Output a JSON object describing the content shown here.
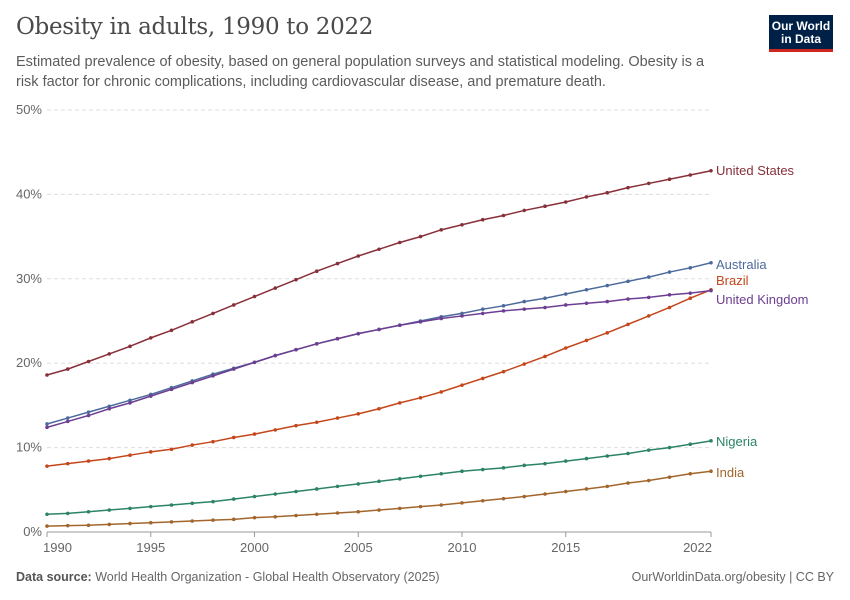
{
  "header": {
    "title": "Obesity in adults, 1990 to 2022",
    "subtitle": "Estimated prevalence of obesity, based on general population surveys and statistical modeling. Obesity is a risk factor for chronic complications, including cardiovascular disease, and premature death.",
    "logo": "Our World in Data"
  },
  "footer": {
    "source_label": "Data source:",
    "source": "World Health Organization - Global Health Observatory (2025)",
    "license": "OurWorldinData.org/obesity | CC BY"
  },
  "chart_data": {
    "type": "line",
    "title": "Obesity in adults, 1990 to 2022",
    "xlim": [
      1990,
      2022
    ],
    "ylim": [
      0,
      50
    ],
    "x_ticks": [
      "1990",
      "1995",
      "2000",
      "2005",
      "2010",
      "2015",
      "2022"
    ],
    "y_ticks": [
      "0%",
      "10%",
      "20%",
      "30%",
      "40%",
      "50%"
    ],
    "grid": "horizontal dashed",
    "legend": "inline labels at line ends (right)",
    "x": [
      1990,
      1991,
      1992,
      1993,
      1994,
      1995,
      1996,
      1997,
      1998,
      1999,
      2000,
      2001,
      2002,
      2003,
      2004,
      2005,
      2006,
      2007,
      2008,
      2009,
      2010,
      2011,
      2012,
      2013,
      2014,
      2015,
      2016,
      2017,
      2018,
      2019,
      2020,
      2021,
      2022
    ],
    "series": [
      {
        "name": "United States",
        "color": "#883039",
        "values": [
          18.6,
          19.3,
          20.2,
          21.1,
          22.0,
          23.0,
          23.9,
          24.9,
          25.9,
          26.9,
          27.9,
          28.9,
          29.9,
          30.9,
          31.8,
          32.7,
          33.5,
          34.3,
          35.0,
          35.8,
          36.4,
          37.0,
          37.5,
          38.1,
          38.6,
          39.1,
          39.7,
          40.2,
          40.8,
          41.3,
          41.8,
          42.3,
          42.8
        ]
      },
      {
        "name": "Australia",
        "color": "#4c6a9c",
        "values": [
          12.8,
          13.5,
          14.2,
          14.9,
          15.6,
          16.3,
          17.1,
          17.9,
          18.7,
          19.4,
          20.1,
          20.9,
          21.6,
          22.3,
          22.9,
          23.5,
          24.0,
          24.5,
          25.0,
          25.5,
          25.9,
          26.4,
          26.8,
          27.3,
          27.7,
          28.2,
          28.7,
          29.2,
          29.7,
          30.2,
          30.8,
          31.3,
          31.9
        ]
      },
      {
        "name": "Brazil",
        "color": "#c4461a",
        "values": [
          7.8,
          8.1,
          8.4,
          8.7,
          9.1,
          9.5,
          9.8,
          10.3,
          10.7,
          11.2,
          11.6,
          12.1,
          12.6,
          13.0,
          13.5,
          14.0,
          14.6,
          15.3,
          15.9,
          16.6,
          17.4,
          18.2,
          19.0,
          19.9,
          20.8,
          21.8,
          22.7,
          23.6,
          24.6,
          25.6,
          26.6,
          27.7,
          28.7
        ]
      },
      {
        "name": "United Kingdom",
        "color": "#6d3e91",
        "values": [
          12.4,
          13.1,
          13.8,
          14.6,
          15.3,
          16.1,
          16.9,
          17.7,
          18.5,
          19.3,
          20.1,
          20.9,
          21.6,
          22.3,
          22.9,
          23.5,
          24.0,
          24.5,
          24.9,
          25.3,
          25.6,
          25.9,
          26.2,
          26.4,
          26.6,
          26.9,
          27.1,
          27.3,
          27.6,
          27.8,
          28.1,
          28.3,
          28.6
        ]
      },
      {
        "name": "Nigeria",
        "color": "#2c8465",
        "values": [
          2.1,
          2.2,
          2.4,
          2.6,
          2.8,
          3.0,
          3.2,
          3.4,
          3.6,
          3.9,
          4.2,
          4.5,
          4.8,
          5.1,
          5.4,
          5.7,
          6.0,
          6.3,
          6.6,
          6.9,
          7.2,
          7.4,
          7.6,
          7.9,
          8.1,
          8.4,
          8.7,
          9.0,
          9.3,
          9.7,
          10.0,
          10.4,
          10.8
        ]
      },
      {
        "name": "India",
        "color": "#a2662c",
        "values": [
          0.7,
          0.75,
          0.8,
          0.9,
          1.0,
          1.1,
          1.2,
          1.3,
          1.4,
          1.5,
          1.7,
          1.8,
          1.95,
          2.1,
          2.25,
          2.4,
          2.6,
          2.8,
          3.0,
          3.2,
          3.45,
          3.7,
          3.95,
          4.2,
          4.5,
          4.8,
          5.1,
          5.4,
          5.8,
          6.1,
          6.5,
          6.9,
          7.2
        ]
      }
    ]
  }
}
